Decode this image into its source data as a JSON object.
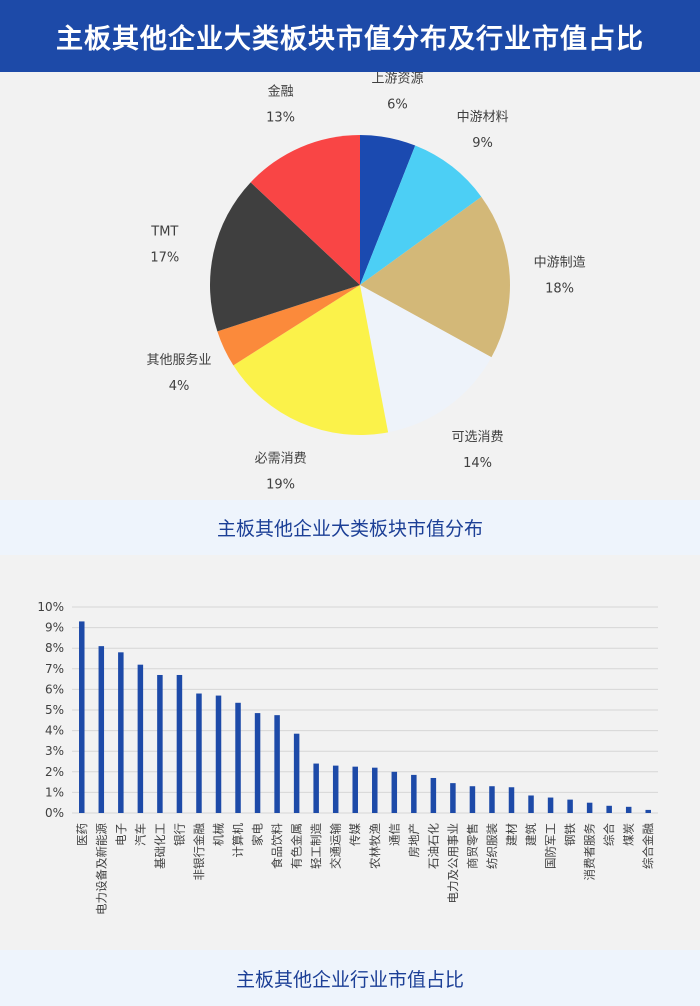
{
  "header": {
    "title": "主板其他企业大类板块市值分布及行业市值占比"
  },
  "captions": {
    "pie": "主板其他企业大类板块市值分布",
    "bar": "主板其他企业行业市值占比"
  },
  "colors": {
    "header_bg": "#1d4aa8",
    "caption_text": "#1c3f96",
    "bar": "#1d4aa8"
  },
  "chart_data": [
    {
      "type": "pie",
      "slices": [
        {
          "label": "上游资源",
          "value": 6,
          "display": "6%",
          "color": "#1b4ab0"
        },
        {
          "label": "中游材料",
          "value": 9,
          "display": "9%",
          "color": "#4ccff5"
        },
        {
          "label": "中游制造",
          "value": 18,
          "display": "18%",
          "color": "#d3b878"
        },
        {
          "label": "可选消费",
          "value": 14,
          "display": "14%",
          "color": "#eef3fa"
        },
        {
          "label": "必需消费",
          "value": 19,
          "display": "19%",
          "color": "#fbf24a"
        },
        {
          "label": "其他服务业",
          "value": 4,
          "display": "4%",
          "color": "#fb8a3b"
        },
        {
          "label": "TMT",
          "value": 17,
          "display": "17%",
          "color": "#3f3f3f"
        },
        {
          "label": "金融",
          "value": 13,
          "display": "13%",
          "color": "#f94545"
        }
      ]
    },
    {
      "type": "bar",
      "categories": [
        "医药",
        "电力设备及新能源",
        "电子",
        "汽车",
        "基础化工",
        "银行",
        "非银行金融",
        "机械",
        "计算机",
        "家电",
        "食品饮料",
        "有色金属",
        "轻工制造",
        "交通运输",
        "传媒",
        "农林牧渔",
        "通信",
        "房地产",
        "石油石化",
        "电力及公用事业",
        "商贸零售",
        "纺织服装",
        "建材",
        "建筑",
        "国防军工",
        "钢铁",
        "消费者服务",
        "综合",
        "煤炭",
        "综合金融"
      ],
      "values": [
        9.3,
        8.1,
        7.8,
        7.2,
        6.7,
        6.7,
        5.8,
        5.7,
        5.35,
        4.85,
        4.75,
        3.85,
        2.4,
        2.3,
        2.25,
        2.2,
        2.0,
        1.85,
        1.7,
        1.45,
        1.3,
        1.3,
        1.25,
        0.85,
        0.75,
        0.65,
        0.5,
        0.35,
        0.3,
        0.15
      ],
      "ylim": [
        0,
        10
      ],
      "yticks": [
        "0%",
        "1%",
        "2%",
        "3%",
        "4%",
        "5%",
        "6%",
        "7%",
        "8%",
        "9%",
        "10%"
      ],
      "grid": true
    }
  ]
}
